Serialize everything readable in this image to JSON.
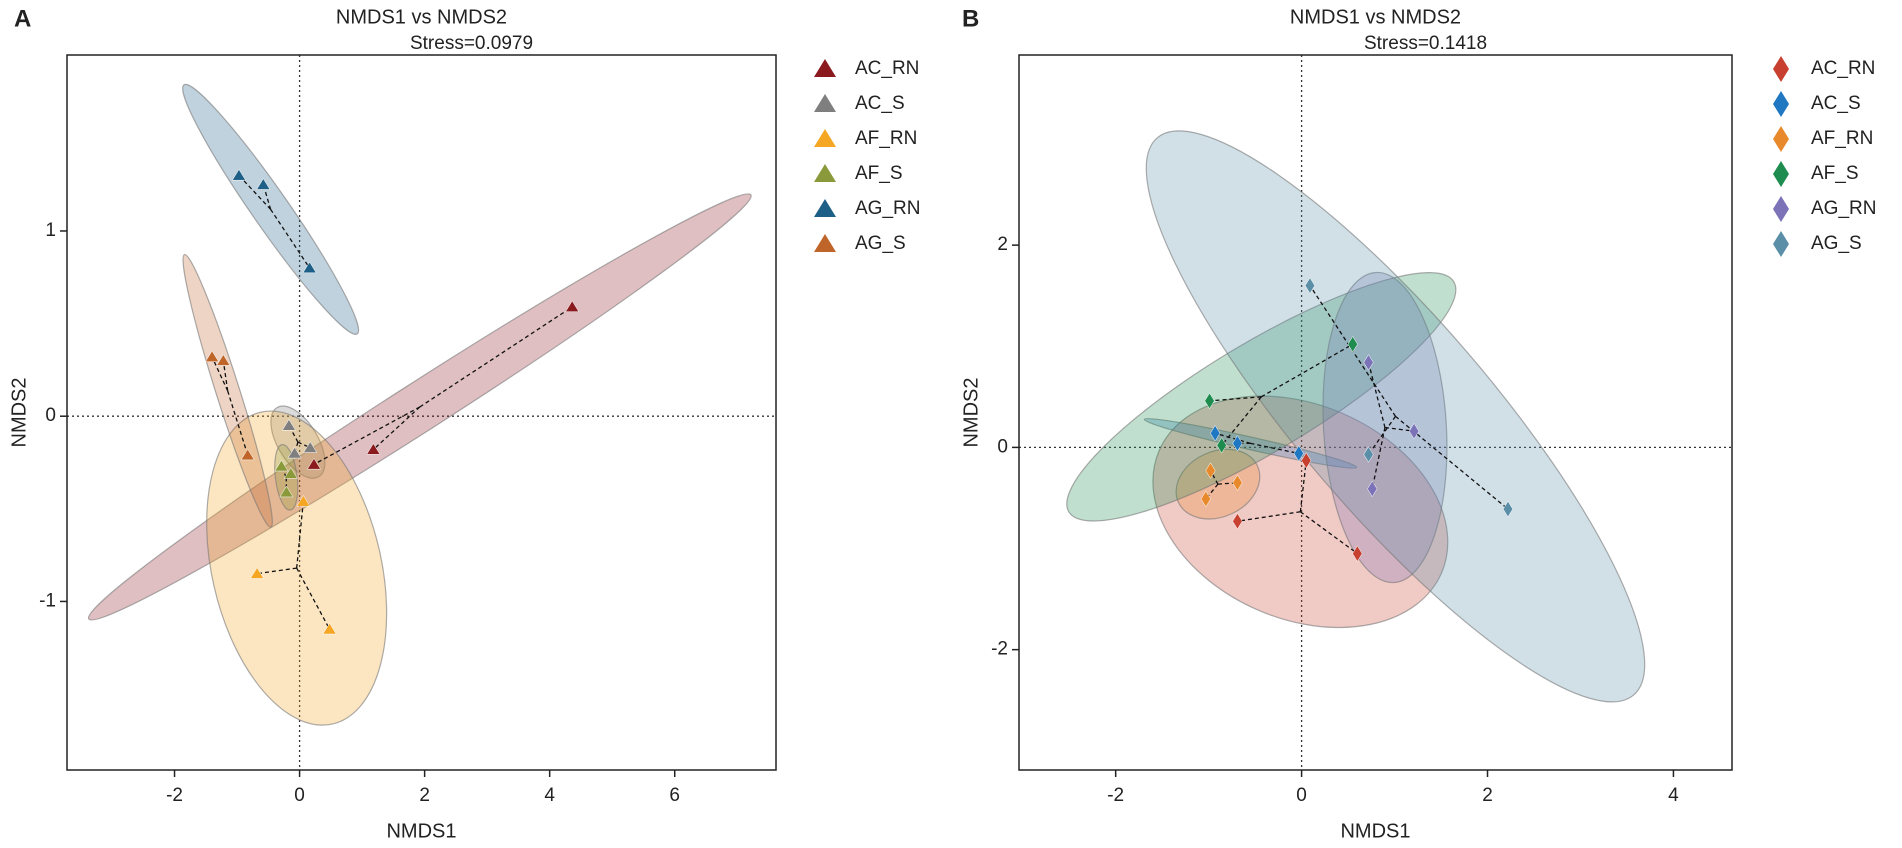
{
  "chart_data": [
    {
      "type": "scatter",
      "panel_label": "A",
      "title": "NMDS1 vs NMDS2",
      "subtitle": "Stress=0.0979",
      "x_label": "NMDS1",
      "y_label": "NMDS2",
      "marker": "triangle",
      "legend": "right",
      "zero_lines": true,
      "ellipses": true,
      "spider": true,
      "xlim": [
        -3.72,
        7.62
      ],
      "ylim": [
        -1.91,
        1.95
      ],
      "xticks": [
        -2,
        0,
        2,
        4,
        6
      ],
      "yticks": [
        -1,
        0,
        1
      ],
      "series": [
        {
          "name": "AC_RN",
          "color": "#8b1a1f",
          "x": [
            4.36,
            1.18,
            0.23
          ],
          "values": [
            0.59,
            -0.18,
            -0.26
          ]
        },
        {
          "name": "AC_S",
          "color": "#7f7f7f",
          "x": [
            -0.17,
            -0.08,
            0.17
          ],
          "values": [
            -0.05,
            -0.2,
            -0.17
          ]
        },
        {
          "name": "AF_RN",
          "color": "#f5a623",
          "x": [
            -0.68,
            0.48,
            0.06
          ],
          "values": [
            -0.85,
            -1.15,
            -0.46
          ]
        },
        {
          "name": "AF_S",
          "color": "#8a9a3b",
          "x": [
            -0.29,
            -0.21,
            -0.14
          ],
          "values": [
            -0.27,
            -0.41,
            -0.31
          ]
        },
        {
          "name": "AG_RN",
          "color": "#1d5f87",
          "x": [
            -0.97,
            -0.58,
            0.16
          ],
          "values": [
            1.3,
            1.25,
            0.8
          ]
        },
        {
          "name": "AG_S",
          "color": "#c0652a",
          "x": [
            -1.4,
            -1.22,
            -0.83
          ],
          "values": [
            0.32,
            0.3,
            -0.21
          ]
        }
      ]
    },
    {
      "type": "scatter",
      "panel_label": "B",
      "title": "NMDS1 vs NMDS2",
      "subtitle": "Stress=0.1418",
      "x_label": "NMDS1",
      "y_label": "NMDS2",
      "marker": "diamond",
      "legend": "right",
      "zero_lines": true,
      "ellipses": true,
      "spider": true,
      "xlim": [
        -3.04,
        4.63
      ],
      "ylim": [
        -3.19,
        3.88
      ],
      "xticks": [
        -2,
        0,
        2,
        4
      ],
      "yticks": [
        -2,
        0,
        2
      ],
      "series": [
        {
          "name": "AC_RN",
          "color": "#c8402f",
          "x": [
            -0.69,
            0.05,
            0.6
          ],
          "values": [
            -0.73,
            -0.13,
            -1.05
          ]
        },
        {
          "name": "AC_S",
          "color": "#1f78c1",
          "x": [
            -0.93,
            -0.69,
            -0.03
          ],
          "values": [
            0.14,
            0.04,
            -0.06
          ]
        },
        {
          "name": "AF_RN",
          "color": "#e8892b",
          "x": [
            -1.03,
            -0.98,
            -0.69
          ],
          "values": [
            -0.51,
            -0.23,
            -0.35
          ]
        },
        {
          "name": "AF_S",
          "color": "#1e8c4e",
          "x": [
            -0.99,
            -0.86,
            0.55
          ],
          "values": [
            0.46,
            0.02,
            1.02
          ]
        },
        {
          "name": "AG_RN",
          "color": "#7b72b8",
          "x": [
            0.72,
            1.21,
            0.76
          ],
          "values": [
            0.84,
            0.16,
            -0.41
          ]
        },
        {
          "name": "AG_S",
          "color": "#5b8fa8",
          "x": [
            0.09,
            0.72,
            2.22
          ],
          "values": [
            1.6,
            -0.07,
            -0.61
          ]
        }
      ]
    }
  ]
}
